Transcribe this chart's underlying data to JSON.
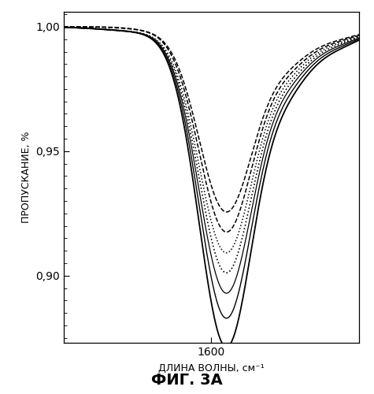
{
  "title": "",
  "xlabel": "ДЛИНА ВОЛНЫ, см⁻¹",
  "ylabel": "ПРОПУСКАНИЕ, %",
  "caption": "ФИГ. 3A",
  "xmin": 1480,
  "xmax": 1720,
  "ymin": 0.873,
  "ymax": 1.006,
  "yticks": [
    0.9,
    0.95,
    1.0
  ],
  "ytick_labels": [
    "0,90",
    "0,95",
    "1,00"
  ],
  "xticks": [
    1600
  ],
  "xtick_labels": [
    "1600"
  ],
  "background_color": "#ffffff",
  "line_color": "#000000"
}
